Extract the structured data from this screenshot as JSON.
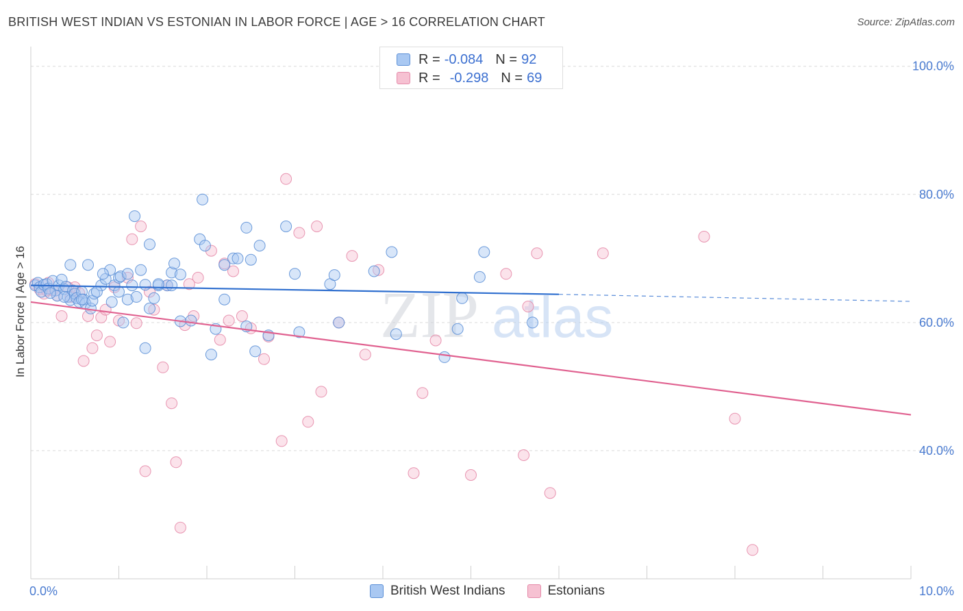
{
  "header": {
    "title": "BRITISH WEST INDIAN VS ESTONIAN IN LABOR FORCE | AGE > 16 CORRELATION CHART",
    "source": "Source: ZipAtlas.com"
  },
  "watermark": {
    "zip": "ZIP",
    "atlas": "atlas"
  },
  "legend": {
    "rows": [
      {
        "r_label": "R =",
        "r_value": "-0.084",
        "n_label": "N =",
        "n_value": "92"
      },
      {
        "r_label": "R =",
        "r_value": "-0.298",
        "n_label": "N =",
        "n_value": "69"
      }
    ]
  },
  "bottom_legend": {
    "series1": "British West Indians",
    "series2": "Estonians"
  },
  "colors": {
    "blue_fill": "#a9c8f2",
    "blue_stroke": "#5b8fd6",
    "blue_line": "#2f6fcf",
    "pink_fill": "#f6c1d2",
    "pink_stroke": "#e58aa9",
    "pink_line": "#e0608f",
    "grid": "#d9d9d9",
    "tick_text": "#4a7bd0"
  },
  "chart_data": {
    "type": "scatter",
    "title": "BRITISH WEST INDIAN VS ESTONIAN IN LABOR FORCE | AGE > 16 CORRELATION CHART",
    "xlabel": "",
    "ylabel": "In Labor Force | Age > 16",
    "xlim": [
      0,
      10
    ],
    "ylim": [
      20,
      102
    ],
    "x_tick_labels": [
      "0.0%",
      "10.0%"
    ],
    "y_ticks": [
      40,
      60,
      80,
      100
    ],
    "y_tick_labels": [
      "40.0%",
      "60.0%",
      "80.0%",
      "100.0%"
    ],
    "grid": true,
    "legend_position": "top-center",
    "series": [
      {
        "name": "British West Indians",
        "r": -0.084,
        "n": 92,
        "trend": {
          "x": [
            0,
            6.0
          ],
          "y": [
            65.8,
            64.4
          ],
          "dashed_to_x": 10.0,
          "dashed_to_y": 63.3
        },
        "points": [
          [
            0.05,
            65.8
          ],
          [
            0.08,
            66.2
          ],
          [
            0.1,
            65.5
          ],
          [
            0.12,
            64.8
          ],
          [
            0.15,
            65.9
          ],
          [
            0.18,
            66.0
          ],
          [
            0.2,
            65.3
          ],
          [
            0.25,
            66.5
          ],
          [
            0.28,
            65.0
          ],
          [
            0.3,
            64.2
          ],
          [
            0.32,
            65.8
          ],
          [
            0.35,
            66.7
          ],
          [
            0.38,
            65.2
          ],
          [
            0.4,
            65.6
          ],
          [
            0.42,
            64.0
          ],
          [
            0.45,
            63.5
          ],
          [
            0.48,
            65.0
          ],
          [
            0.5,
            64.5
          ],
          [
            0.52,
            63.8
          ],
          [
            0.55,
            63.2
          ],
          [
            0.58,
            64.8
          ],
          [
            0.6,
            63.6
          ],
          [
            0.62,
            63.0
          ],
          [
            0.68,
            62.2
          ],
          [
            0.7,
            63.4
          ],
          [
            0.72,
            64.5
          ],
          [
            0.8,
            65.8
          ],
          [
            0.85,
            66.8
          ],
          [
            0.92,
            63.2
          ],
          [
            0.95,
            65.8
          ],
          [
            1.0,
            64.8
          ],
          [
            1.05,
            60.0
          ],
          [
            1.1,
            63.6
          ],
          [
            1.15,
            65.8
          ],
          [
            1.2,
            64.0
          ],
          [
            1.25,
            68.2
          ],
          [
            1.3,
            65.9
          ],
          [
            1.35,
            62.2
          ],
          [
            1.4,
            63.8
          ],
          [
            1.45,
            65.8
          ],
          [
            1.55,
            65.8
          ],
          [
            1.6,
            67.8
          ],
          [
            1.7,
            60.2
          ],
          [
            1.82,
            60.3
          ],
          [
            1.92,
            73.0
          ],
          [
            1.98,
            72.0
          ],
          [
            2.05,
            55.0
          ],
          [
            2.1,
            59.0
          ],
          [
            2.2,
            69.0
          ],
          [
            2.3,
            70.0
          ],
          [
            2.35,
            70.0
          ],
          [
            2.2,
            63.6
          ],
          [
            2.45,
            74.8
          ],
          [
            2.5,
            69.8
          ],
          [
            2.55,
            55.5
          ],
          [
            2.6,
            72.0
          ],
          [
            2.45,
            59.4
          ],
          [
            2.7,
            58.0
          ],
          [
            2.9,
            75.0
          ],
          [
            3.0,
            67.6
          ],
          [
            3.05,
            58.5
          ],
          [
            3.4,
            66.0
          ],
          [
            3.45,
            67.4
          ],
          [
            3.5,
            60.0
          ],
          [
            3.9,
            68.0
          ],
          [
            4.1,
            71.0
          ],
          [
            4.15,
            58.2
          ],
          [
            4.7,
            54.6
          ],
          [
            4.85,
            59.0
          ],
          [
            4.9,
            63.8
          ],
          [
            5.1,
            67.1
          ],
          [
            5.15,
            71.0
          ],
          [
            5.7,
            60.0
          ],
          [
            1.18,
            76.6
          ],
          [
            1.95,
            79.2
          ],
          [
            1.35,
            72.2
          ],
          [
            1.3,
            56.0
          ],
          [
            1.0,
            67.0
          ],
          [
            0.9,
            68.2
          ],
          [
            1.02,
            67.2
          ],
          [
            0.65,
            69.0
          ],
          [
            0.45,
            69.0
          ],
          [
            0.82,
            67.6
          ],
          [
            1.6,
            65.8
          ],
          [
            1.7,
            67.5
          ],
          [
            1.63,
            69.2
          ],
          [
            0.38,
            64.0
          ],
          [
            0.22,
            64.6
          ],
          [
            0.58,
            63.6
          ],
          [
            0.75,
            64.8
          ],
          [
            1.45,
            66.0
          ],
          [
            1.1,
            67.6
          ]
        ]
      },
      {
        "name": "Estonians",
        "r": -0.298,
        "n": 69,
        "trend": {
          "x": [
            0,
            10.0
          ],
          "y": [
            63.2,
            45.6
          ]
        },
        "points": [
          [
            0.05,
            66.0
          ],
          [
            0.1,
            65.2
          ],
          [
            0.15,
            64.5
          ],
          [
            0.2,
            66.2
          ],
          [
            0.25,
            65.0
          ],
          [
            0.3,
            64.2
          ],
          [
            0.35,
            61.0
          ],
          [
            0.45,
            64.0
          ],
          [
            0.5,
            65.5
          ],
          [
            0.6,
            54.0
          ],
          [
            0.65,
            61.0
          ],
          [
            0.7,
            56.0
          ],
          [
            0.75,
            58.0
          ],
          [
            0.8,
            60.8
          ],
          [
            0.85,
            62.0
          ],
          [
            0.9,
            57.0
          ],
          [
            0.95,
            65.5
          ],
          [
            1.0,
            60.3
          ],
          [
            1.1,
            67.0
          ],
          [
            1.15,
            73.0
          ],
          [
            1.2,
            59.9
          ],
          [
            1.25,
            75.0
          ],
          [
            1.3,
            36.8
          ],
          [
            1.4,
            62.0
          ],
          [
            1.5,
            53.0
          ],
          [
            1.6,
            47.4
          ],
          [
            1.65,
            38.2
          ],
          [
            1.7,
            28.0
          ],
          [
            1.75,
            59.6
          ],
          [
            1.8,
            66.0
          ],
          [
            1.85,
            61.0
          ],
          [
            1.9,
            67.0
          ],
          [
            2.05,
            71.2
          ],
          [
            2.15,
            57.3
          ],
          [
            2.2,
            69.2
          ],
          [
            2.25,
            60.3
          ],
          [
            2.3,
            68.0
          ],
          [
            2.4,
            61.0
          ],
          [
            2.5,
            59.1
          ],
          [
            2.65,
            54.3
          ],
          [
            2.7,
            57.8
          ],
          [
            2.85,
            41.5
          ],
          [
            2.9,
            82.4
          ],
          [
            3.05,
            74.0
          ],
          [
            3.15,
            44.5
          ],
          [
            3.25,
            75.0
          ],
          [
            3.3,
            49.2
          ],
          [
            3.5,
            60.0
          ],
          [
            3.65,
            70.4
          ],
          [
            3.8,
            55.0
          ],
          [
            3.95,
            68.2
          ],
          [
            4.35,
            36.5
          ],
          [
            4.45,
            49.0
          ],
          [
            4.6,
            57.2
          ],
          [
            5.0,
            36.2
          ],
          [
            5.4,
            67.6
          ],
          [
            5.6,
            39.3
          ],
          [
            5.65,
            62.5
          ],
          [
            5.75,
            70.8
          ],
          [
            5.9,
            33.4
          ],
          [
            6.5,
            70.8
          ],
          [
            7.65,
            73.4
          ],
          [
            8.0,
            45.0
          ],
          [
            8.2,
            24.5
          ],
          [
            0.55,
            64.6
          ],
          [
            1.55,
            65.8
          ],
          [
            0.42,
            65.5
          ],
          [
            0.18,
            65.0
          ],
          [
            1.35,
            64.8
          ]
        ]
      }
    ]
  }
}
